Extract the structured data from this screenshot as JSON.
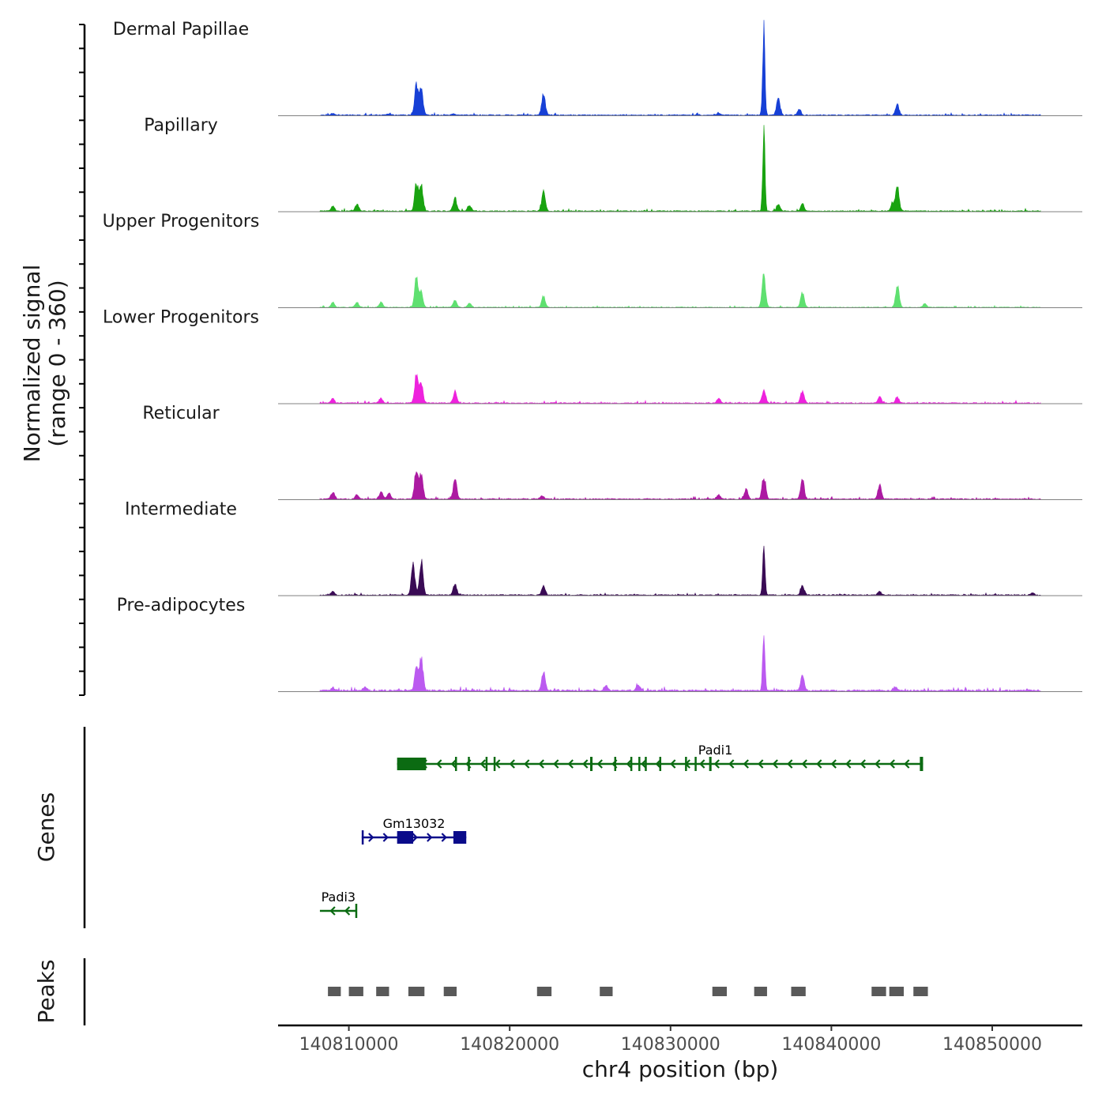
{
  "chart_data": {
    "type": "genome-coverage-tracks",
    "chromosome": "chr4",
    "xlim": [
      140805600,
      140855600
    ],
    "x_ticks": [
      140810000,
      140820000,
      140830000,
      140840000,
      140850000
    ],
    "x_tick_labels": [
      "140810000",
      "140820000",
      "140830000",
      "140840000",
      "140850000"
    ],
    "xlabel": "chr4 position (bp)",
    "signal_axis": {
      "label_line1": "Normalized signal",
      "label_line2": "(range 0 - 360)",
      "range": [
        0,
        360
      ]
    },
    "coverage_extent": [
      140808200,
      140853000
    ],
    "tracks": [
      {
        "name": "Dermal Papillae",
        "color": "#1740d6",
        "baseline": 3,
        "peaks": [
          [
            140809000,
            8
          ],
          [
            140812500,
            5
          ],
          [
            140814200,
            120
          ],
          [
            140814500,
            105
          ],
          [
            140816500,
            6
          ],
          [
            140822100,
            90
          ],
          [
            140833000,
            8
          ],
          [
            140835800,
            360
          ],
          [
            140836700,
            65
          ],
          [
            140838000,
            25
          ],
          [
            140844100,
            45
          ]
        ]
      },
      {
        "name": "Papillary",
        "color": "#19a310",
        "baseline": 3,
        "peaks": [
          [
            140809000,
            20
          ],
          [
            140810500,
            30
          ],
          [
            140814200,
            115
          ],
          [
            140814500,
            105
          ],
          [
            140816600,
            55
          ],
          [
            140817500,
            25
          ],
          [
            140822100,
            80
          ],
          [
            140835800,
            340
          ],
          [
            140836700,
            30
          ],
          [
            140838200,
            30
          ],
          [
            140843800,
            30
          ],
          [
            140844100,
            105
          ]
        ]
      },
      {
        "name": "Upper Progenitors",
        "color": "#5fe070",
        "baseline": 2,
        "peaks": [
          [
            140809000,
            20
          ],
          [
            140810500,
            20
          ],
          [
            140812000,
            22
          ],
          [
            140814200,
            125
          ],
          [
            140814500,
            60
          ],
          [
            140816600,
            30
          ],
          [
            140817500,
            18
          ],
          [
            140822100,
            45
          ],
          [
            140835800,
            130
          ],
          [
            140838200,
            60
          ],
          [
            140844100,
            90
          ],
          [
            140845800,
            15
          ]
        ]
      },
      {
        "name": "Lower Progenitors",
        "color": "#ee22dd",
        "baseline": 3,
        "peaks": [
          [
            140809000,
            18
          ],
          [
            140812000,
            20
          ],
          [
            140814200,
            115
          ],
          [
            140814500,
            80
          ],
          [
            140816600,
            50
          ],
          [
            140833000,
            18
          ],
          [
            140835800,
            55
          ],
          [
            140838200,
            50
          ],
          [
            140843000,
            30
          ],
          [
            140844100,
            25
          ]
        ]
      },
      {
        "name": "Reticular",
        "color": "#ac1aa2",
        "baseline": 3,
        "peaks": [
          [
            140809000,
            28
          ],
          [
            140810500,
            18
          ],
          [
            140812000,
            30
          ],
          [
            140812500,
            25
          ],
          [
            140814200,
            125
          ],
          [
            140814500,
            100
          ],
          [
            140816600,
            80
          ],
          [
            140822000,
            15
          ],
          [
            140833000,
            18
          ],
          [
            140834700,
            40
          ],
          [
            140835800,
            95
          ],
          [
            140838200,
            85
          ],
          [
            140843000,
            55
          ]
        ]
      },
      {
        "name": "Intermediate",
        "color": "#3a0b55",
        "baseline": 3,
        "peaks": [
          [
            140809000,
            15
          ],
          [
            140814000,
            120
          ],
          [
            140814500,
            140
          ],
          [
            140816600,
            45
          ],
          [
            140822100,
            38
          ],
          [
            140835800,
            200
          ],
          [
            140838200,
            40
          ],
          [
            140843000,
            15
          ],
          [
            140852500,
            10
          ]
        ]
      },
      {
        "name": "Pre-adipocytes",
        "color": "#bb5af0",
        "baseline": 5,
        "peaks": [
          [
            140809000,
            12
          ],
          [
            140811000,
            16
          ],
          [
            140814200,
            100
          ],
          [
            140814500,
            135
          ],
          [
            140822100,
            80
          ],
          [
            140826000,
            20
          ],
          [
            140828000,
            25
          ],
          [
            140835800,
            230
          ],
          [
            140838200,
            60
          ],
          [
            140844000,
            15
          ]
        ]
      }
    ],
    "genes_axis_label": "Genes",
    "genes": [
      {
        "name": "Padi1",
        "strand": "-",
        "color": "#0b6b12",
        "start": 140813000,
        "end": 140845700,
        "exons": [
          [
            140813000,
            140814800
          ],
          [
            140816600,
            140816700
          ],
          [
            140817400,
            140817500
          ],
          [
            140818500,
            140818600
          ],
          [
            140819000,
            140819100
          ],
          [
            140825000,
            140825150
          ],
          [
            140826500,
            140826600
          ],
          [
            140827500,
            140827600
          ],
          [
            140828000,
            140828100
          ],
          [
            140828400,
            140828500
          ],
          [
            140829300,
            140829400
          ],
          [
            140830900,
            140831000
          ],
          [
            140831500,
            140831600
          ],
          [
            140832400,
            140832550
          ],
          [
            140845500,
            140845700
          ]
        ]
      },
      {
        "name": "Gm13032",
        "strand": "+",
        "color": "#0a0b8a",
        "start": 140810800,
        "end": 140817300,
        "exons": [
          [
            140810800,
            140810900
          ],
          [
            140813000,
            140814000
          ],
          [
            140816500,
            140817300
          ]
        ]
      },
      {
        "name": "Padi3",
        "strand": "-",
        "color": "#0b6b12",
        "start": 140808200,
        "end": 140810500,
        "exons": [
          [
            140810400,
            140810500
          ]
        ]
      }
    ],
    "peaks_axis_label": "Peaks",
    "peak_regions": [
      [
        140808700,
        140809500
      ],
      [
        140810000,
        140810900
      ],
      [
        140811700,
        140812500
      ],
      [
        140813700,
        140814700
      ],
      [
        140815900,
        140816700
      ],
      [
        140821700,
        140822600
      ],
      [
        140825600,
        140826400
      ],
      [
        140832600,
        140833500
      ],
      [
        140835200,
        140836000
      ],
      [
        140837500,
        140838400
      ],
      [
        140842500,
        140843400
      ],
      [
        140843600,
        140844500
      ],
      [
        140845100,
        140846000
      ]
    ]
  }
}
